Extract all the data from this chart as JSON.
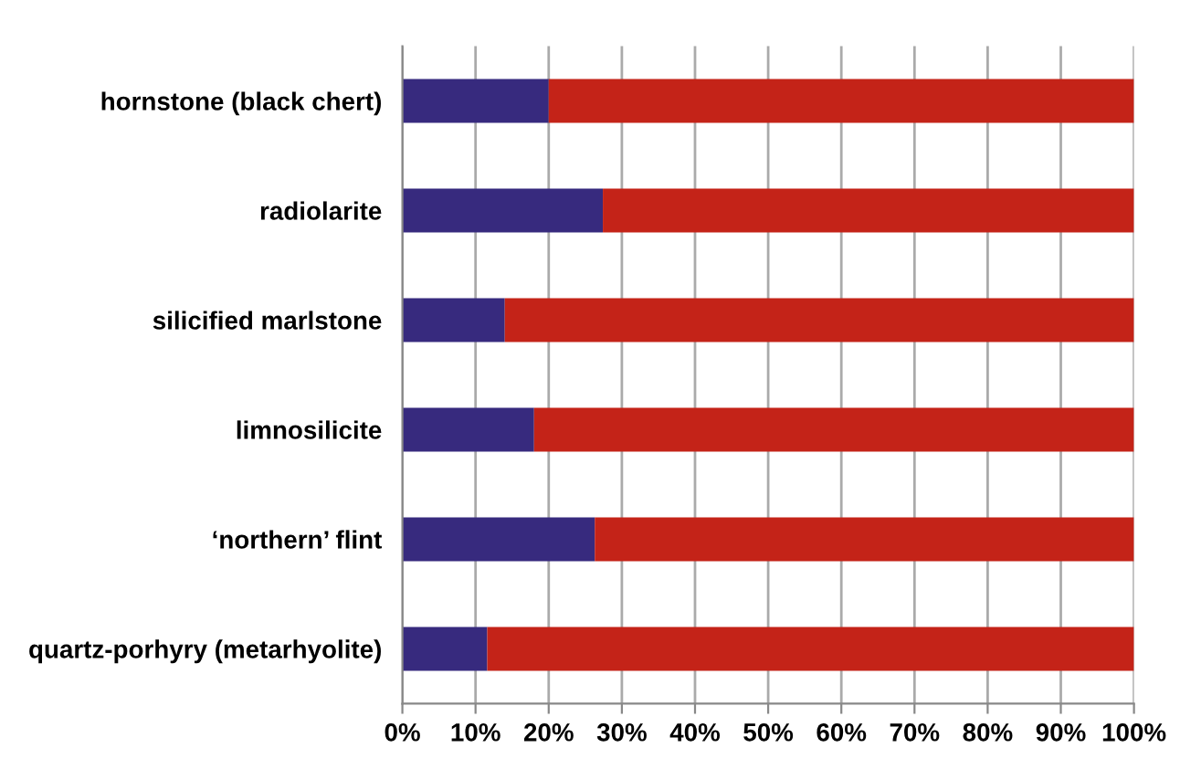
{
  "chart_data": {
    "type": "bar",
    "orientation": "horizontal",
    "stacked": true,
    "categories": [
      "hornstone (black chert)",
      "radiolarite",
      "silicified marlstone",
      "limnosilicite",
      "‘northern’ flint",
      "quartz-porhyry (metarhyolite)"
    ],
    "series": [
      {
        "color": "#372a7e",
        "values": [
          20.0,
          27.4,
          14.0,
          18.0,
          26.3,
          11.6
        ]
      },
      {
        "color": "#c42318",
        "values": [
          80.0,
          72.6,
          86.0,
          82.0,
          73.7,
          88.4
        ]
      }
    ],
    "xlim": [
      0,
      100
    ],
    "xticks": [
      {
        "value": 0,
        "label": "0%"
      },
      {
        "value": 10,
        "label": "10%"
      },
      {
        "value": 20,
        "label": "20%"
      },
      {
        "value": 30,
        "label": "30%"
      },
      {
        "value": 40,
        "label": "40%"
      },
      {
        "value": 50,
        "label": "50%"
      },
      {
        "value": 60,
        "label": "60%"
      },
      {
        "value": 70,
        "label": "70%"
      },
      {
        "value": 80,
        "label": "80%"
      },
      {
        "value": 90,
        "label": "90%"
      },
      {
        "value": 100,
        "label": "100%"
      }
    ],
    "grid": "x"
  }
}
